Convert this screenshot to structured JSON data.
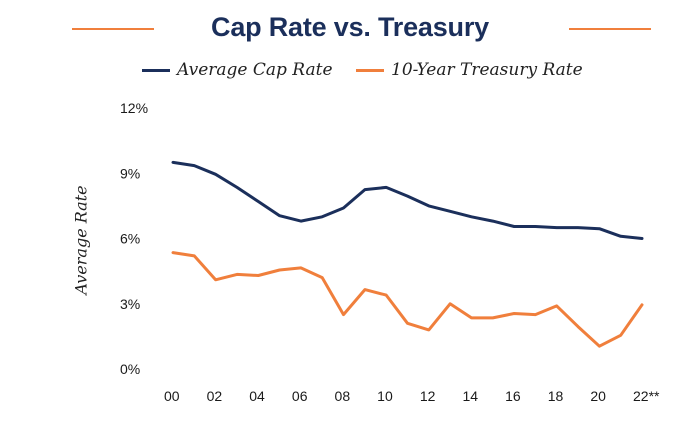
{
  "chart_data": {
    "type": "line",
    "title": "Cap Rate vs. Treasury",
    "xlabel": "",
    "ylabel": "Average Rate",
    "ylim": [
      0,
      12
    ],
    "yticks": [
      "0%",
      "3%",
      "6%",
      "9%",
      "12%"
    ],
    "xtick_labels": [
      "00",
      "02",
      "04",
      "06",
      "08",
      "10",
      "12",
      "14",
      "16",
      "18",
      "20",
      "22**"
    ],
    "grid": false,
    "legend": "top",
    "x": [
      0,
      1,
      2,
      3,
      4,
      5,
      6,
      7,
      8,
      9,
      10,
      11,
      12,
      13,
      14,
      15,
      16,
      17,
      18,
      19,
      20,
      21,
      22
    ],
    "series": [
      {
        "name": "Average Cap Rate",
        "color": "#1b2f5b",
        "values": [
          9.5,
          9.35,
          8.95,
          8.35,
          7.7,
          7.05,
          6.8,
          7.0,
          7.4,
          8.25,
          8.35,
          7.95,
          7.5,
          7.25,
          7.0,
          6.8,
          6.55,
          6.55,
          6.5,
          6.5,
          6.45,
          6.1,
          6.0
        ]
      },
      {
        "name": "10-Year Treasury Rate",
        "color": "#f07f3c",
        "values": [
          5.35,
          5.2,
          4.1,
          4.35,
          4.3,
          4.55,
          4.65,
          4.2,
          2.5,
          3.65,
          3.4,
          2.1,
          1.8,
          3.0,
          2.35,
          2.35,
          2.55,
          2.5,
          2.9,
          1.95,
          1.05,
          1.55,
          2.95
        ]
      }
    ],
    "title_rule_color": "#f07f3c",
    "title_color": "#1b2f5b"
  }
}
